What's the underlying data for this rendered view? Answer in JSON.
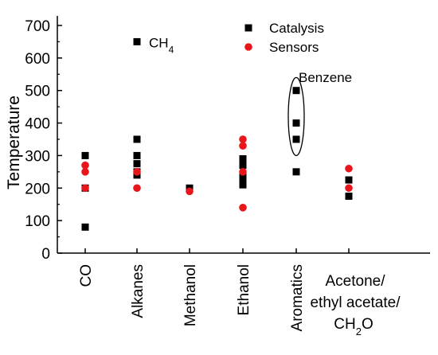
{
  "chart_data": {
    "type": "scatter",
    "ylabel": "Temperature",
    "xlabel": "",
    "ylim": [
      0,
      700
    ],
    "yticks": [
      0,
      100,
      200,
      300,
      400,
      500,
      600,
      700
    ],
    "categories": [
      [
        "CO"
      ],
      [
        "Alkanes"
      ],
      [
        "Methanol"
      ],
      [
        "Ethanol"
      ],
      [
        "Aromatics"
      ],
      [
        "Acetone/",
        "ethyl acetate/",
        "CH",
        "2",
        "O"
      ]
    ],
    "series": [
      {
        "name": "Catalysis",
        "color": "#000000",
        "marker": "square",
        "points": [
          {
            "category": "CO",
            "y": 300
          },
          {
            "category": "CO",
            "y": 200
          },
          {
            "category": "CO",
            "y": 80
          },
          {
            "category": "Alkanes",
            "y": 650
          },
          {
            "category": "Alkanes",
            "y": 350
          },
          {
            "category": "Alkanes",
            "y": 300
          },
          {
            "category": "Alkanes",
            "y": 275
          },
          {
            "category": "Alkanes",
            "y": 250
          },
          {
            "category": "Alkanes",
            "y": 240
          },
          {
            "category": "Methanol",
            "y": 200
          },
          {
            "category": "Ethanol",
            "y": 290
          },
          {
            "category": "Ethanol",
            "y": 270
          },
          {
            "category": "Ethanol",
            "y": 240
          },
          {
            "category": "Ethanol",
            "y": 225
          },
          {
            "category": "Ethanol",
            "y": 210
          },
          {
            "category": "Aromatics",
            "y": 500
          },
          {
            "category": "Aromatics",
            "y": 400
          },
          {
            "category": "Aromatics",
            "y": 350
          },
          {
            "category": "Aromatics",
            "y": 250
          },
          {
            "category": "Acetone/ethyl acetate/CH2O",
            "y": 225
          },
          {
            "category": "Acetone/ethyl acetate/CH2O",
            "y": 175
          }
        ]
      },
      {
        "name": "Sensors",
        "color": "#e8151b",
        "marker": "circle",
        "points": [
          {
            "category": "CO",
            "y": 270
          },
          {
            "category": "CO",
            "y": 250
          },
          {
            "category": "CO",
            "y": 200
          },
          {
            "category": "Alkanes",
            "y": 250
          },
          {
            "category": "Alkanes",
            "y": 200
          },
          {
            "category": "Methanol",
            "y": 190
          },
          {
            "category": "Ethanol",
            "y": 350
          },
          {
            "category": "Ethanol",
            "y": 330
          },
          {
            "category": "Ethanol",
            "y": 250
          },
          {
            "category": "Ethanol",
            "y": 140
          },
          {
            "category": "Acetone/ethyl acetate/CH2O",
            "y": 260
          },
          {
            "category": "Acetone/ethyl acetate/CH2O",
            "y": 200
          }
        ]
      }
    ],
    "annotations": [
      {
        "text": "CH",
        "sub": "4",
        "category": "Alkanes",
        "y": 650
      },
      {
        "text": "Benzene",
        "category": "Aromatics",
        "y": 560,
        "enclosed_range": [
          300,
          540
        ]
      }
    ],
    "legend": {
      "placement": "top-right",
      "entries": [
        "Catalysis",
        "Sensors"
      ]
    },
    "grid": false
  }
}
